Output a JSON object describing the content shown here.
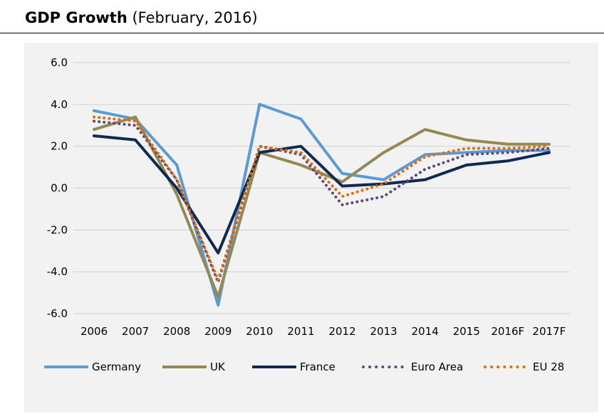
{
  "header": {
    "title_main": "GDP Growth",
    "title_sub": "(February, 2016)"
  },
  "chart_data": {
    "type": "line",
    "title": "GDP Growth (February, 2016)",
    "xlabel": "",
    "ylabel": "",
    "categories": [
      "2006",
      "2007",
      "2008",
      "2009",
      "2010",
      "2011",
      "2012",
      "2013",
      "2014",
      "2015",
      "2016F",
      "2017F"
    ],
    "ylim": [
      -6.0,
      6.0
    ],
    "yticks": [
      6.0,
      4.0,
      2.0,
      0.0,
      -2.0,
      -4.0,
      -6.0
    ],
    "ytick_labels": [
      "6.0",
      "4.0",
      "2.0",
      "0.0",
      "-2.0",
      "-4.0",
      "-6.0"
    ],
    "grid": true,
    "legend_position": "bottom",
    "series": [
      {
        "name": "Germany",
        "color": "#5b9bd5",
        "style": "solid",
        "values": [
          3.7,
          3.3,
          1.1,
          -5.6,
          4.0,
          3.3,
          0.7,
          0.4,
          1.6,
          1.7,
          1.8,
          1.8
        ]
      },
      {
        "name": "UK",
        "color": "#938953",
        "style": "solid",
        "values": [
          2.8,
          3.4,
          -0.3,
          -5.2,
          1.7,
          1.1,
          0.3,
          1.7,
          2.8,
          2.3,
          2.1,
          2.1
        ]
      },
      {
        "name": "France",
        "color": "#0e2a52",
        "style": "solid",
        "values": [
          2.5,
          2.3,
          0.0,
          -3.1,
          1.7,
          2.0,
          0.1,
          0.2,
          0.4,
          1.1,
          1.3,
          1.7
        ]
      },
      {
        "name": "Euro Area",
        "color": "#604a7b",
        "style": "dotted",
        "values": [
          3.2,
          3.0,
          0.4,
          -4.5,
          2.0,
          1.6,
          -0.8,
          -0.4,
          0.9,
          1.6,
          1.7,
          1.9
        ]
      },
      {
        "name": "EU 28",
        "color": "#e46c0a",
        "style": "dotted",
        "values": [
          3.4,
          3.2,
          0.4,
          -4.4,
          2.0,
          1.7,
          -0.4,
          0.2,
          1.5,
          1.9,
          1.9,
          2.0
        ]
      }
    ]
  }
}
